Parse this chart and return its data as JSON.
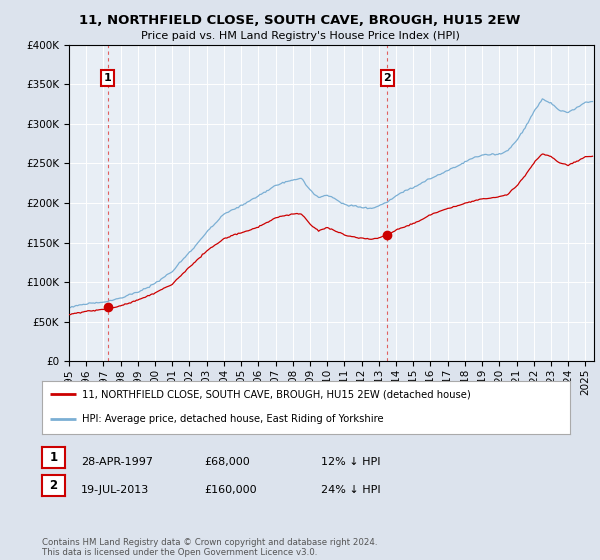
{
  "title": "11, NORTHFIELD CLOSE, SOUTH CAVE, BROUGH, HU15 2EW",
  "subtitle": "Price paid vs. HM Land Registry's House Price Index (HPI)",
  "sale1_price": 68000,
  "sale1_label": "1",
  "sale2_price": 160000,
  "sale2_label": "2",
  "red_line_label": "11, NORTHFIELD CLOSE, SOUTH CAVE, BROUGH, HU15 2EW (detached house)",
  "blue_line_label": "HPI: Average price, detached house, East Riding of Yorkshire",
  "row1_date": "28-APR-1997",
  "row1_price": "£68,000",
  "row1_pct": "12% ↓ HPI",
  "row2_date": "19-JUL-2013",
  "row2_price": "£160,000",
  "row2_pct": "24% ↓ HPI",
  "footer": "Contains HM Land Registry data © Crown copyright and database right 2024.\nThis data is licensed under the Open Government Licence v3.0.",
  "red_color": "#cc0000",
  "blue_color": "#7bafd4",
  "dashed_color": "#e06060",
  "background_color": "#dce3ed",
  "plot_bg_color": "#e8eef5",
  "ylim": [
    0,
    400000
  ],
  "yticks": [
    0,
    50000,
    100000,
    150000,
    200000,
    250000,
    300000,
    350000,
    400000
  ],
  "sale1_year": 1997,
  "sale1_month": 4,
  "sale2_year": 2013,
  "sale2_month": 7
}
